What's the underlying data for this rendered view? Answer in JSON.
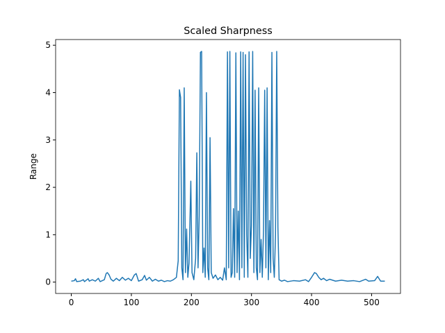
{
  "chart_data": {
    "type": "line",
    "title": "Scaled Sharpness",
    "y_label": "Range",
    "xlim": [
      -26.1,
      548.1
    ],
    "xticks": [
      0,
      100,
      200,
      300,
      400,
      500
    ],
    "ylim": [
      -0.24,
      5.12
    ],
    "yticks": [
      0,
      1,
      2,
      3,
      4,
      5
    ],
    "series": [
      {
        "color": "#1f77b4",
        "x": [
          0,
          5,
          7,
          9,
          15,
          20,
          22,
          28,
          30,
          35,
          40,
          45,
          48,
          55,
          58,
          60,
          63,
          66,
          70,
          75,
          80,
          85,
          90,
          95,
          100,
          105,
          108,
          112,
          118,
          122,
          125,
          130,
          135,
          140,
          145,
          150,
          155,
          160,
          165,
          170,
          175,
          178,
          180,
          182,
          184,
          186,
          188,
          190,
          192,
          194,
          196,
          199,
          201,
          204,
          207,
          209,
          211,
          213,
          215,
          217,
          219,
          221,
          223,
          225,
          227,
          229,
          231,
          233,
          236,
          240,
          244,
          248,
          252,
          255,
          258,
          260,
          262,
          264,
          266,
          268,
          270,
          272,
          274,
          276,
          278,
          280,
          282,
          284,
          286,
          288,
          290,
          292,
          294,
          296,
          298,
          300,
          302,
          304,
          306,
          308,
          310,
          312,
          314,
          316,
          318,
          320,
          322,
          324,
          326,
          328,
          330,
          332,
          334,
          336,
          338,
          340,
          342,
          344,
          346,
          350,
          355,
          360,
          370,
          380,
          390,
          395,
          400,
          405,
          408,
          412,
          416,
          420,
          425,
          430,
          440,
          450,
          460,
          470,
          480,
          490,
          495,
          505,
          510,
          515,
          522
        ],
        "values": [
          0.02,
          0.03,
          0.07,
          0.01,
          0.02,
          0.05,
          0.01,
          0.07,
          0.02,
          0.05,
          0.02,
          0.08,
          0.01,
          0.05,
          0.18,
          0.2,
          0.15,
          0.06,
          0.02,
          0.08,
          0.03,
          0.1,
          0.04,
          0.08,
          0.03,
          0.15,
          0.18,
          0.02,
          0.05,
          0.14,
          0.04,
          0.1,
          0.02,
          0.06,
          0.02,
          0.04,
          0.01,
          0.03,
          0.02,
          0.05,
          0.1,
          0.45,
          4.06,
          3.9,
          0.3,
          0.05,
          4.1,
          0.2,
          1.12,
          0.1,
          0.4,
          2.13,
          0.2,
          0.05,
          0.5,
          2.73,
          0.3,
          1.4,
          4.85,
          4.87,
          0.2,
          0.72,
          0.1,
          4.0,
          0.3,
          0.05,
          3.05,
          0.2,
          0.08,
          0.15,
          0.05,
          0.1,
          0.04,
          0.3,
          0.05,
          4.86,
          0.3,
          4.87,
          0.1,
          0.2,
          1.55,
          0.1,
          4.84,
          0.2,
          1.5,
          0.05,
          4.86,
          0.3,
          4.85,
          0.1,
          4.8,
          1.0,
          0.1,
          4.86,
          0.5,
          1.2,
          4.87,
          0.2,
          4.05,
          0.3,
          0.05,
          4.1,
          0.2,
          0.9,
          0.1,
          1.1,
          4.05,
          0.3,
          4.1,
          0.05,
          1.3,
          0.2,
          4.85,
          0.5,
          0.1,
          1.0,
          4.87,
          1.15,
          0.05,
          0.02,
          0.04,
          0.01,
          0.03,
          0.02,
          0.05,
          0.01,
          0.1,
          0.2,
          0.18,
          0.1,
          0.05,
          0.08,
          0.03,
          0.06,
          0.02,
          0.04,
          0.02,
          0.03,
          0.01,
          0.06,
          0.02,
          0.03,
          0.12,
          0.02,
          0.02
        ]
      }
    ]
  }
}
